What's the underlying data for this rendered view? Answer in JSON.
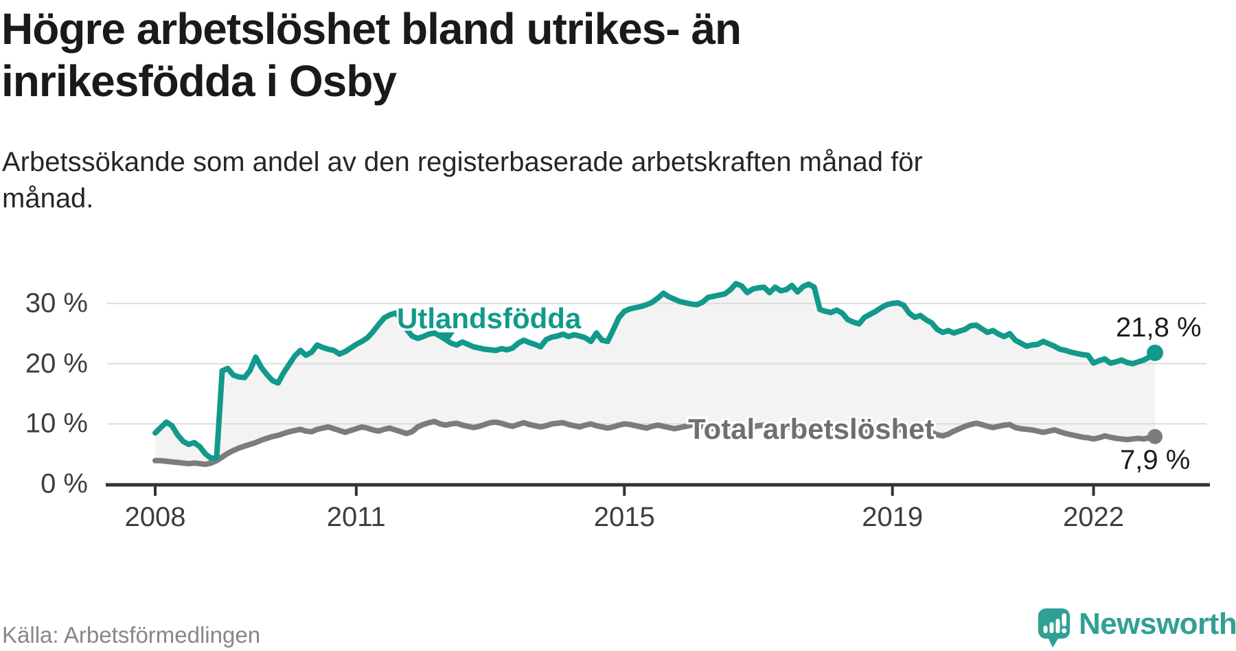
{
  "header": {
    "title_line1": "Högre arbetslöshet bland utrikes- än",
    "title_line2": "inrikesfödda i Osby",
    "subtitle_line1": "Arbetssökande som andel av den registerbaserade arbetskraften månad för",
    "subtitle_line2": "månad."
  },
  "chart_data": {
    "type": "line",
    "title": "Högre arbetslöshet bland utrikes- än inrikesfödda i Osby",
    "subtitle": "Arbetssökande som andel av den registerbaserade arbetskraften månad för månad.",
    "x_start": "2008-01",
    "x_end": "2022-12",
    "frequency": "monthly",
    "xlabel": "",
    "ylabel": "",
    "ylim": [
      0,
      33.5
    ],
    "grid": "horizontal",
    "y_gridlines": [
      10,
      20,
      30
    ],
    "y_tick_labels": [
      "0 %",
      "10 %",
      "20 %",
      "30 %"
    ],
    "x_tick_years": [
      2008,
      2011,
      2015,
      2019,
      2022
    ],
    "x_tick_labels": [
      "2008",
      "2011",
      "2015",
      "2019",
      "2022"
    ],
    "area_fill_between_series": true,
    "area_fill_color": "#f3f3f3",
    "gridline_color": "#dcdcdc",
    "axis_color": "#333333",
    "series": [
      {
        "name": "Utlandsfödda",
        "color": "#12998b",
        "end_label": "21,8 %",
        "end_value": 21.8,
        "values": [
          8.5,
          9.4,
          10.3,
          9.7,
          8.2,
          7.1,
          6.6,
          6.9,
          6.2,
          5.0,
          4.3,
          4.4,
          18.8,
          19.2,
          18.1,
          17.8,
          17.7,
          18.9,
          21.1,
          19.4,
          18.2,
          17.2,
          16.8,
          18.5,
          19.9,
          21.3,
          22.2,
          21.4,
          21.9,
          23.1,
          22.7,
          22.4,
          22.2,
          21.6,
          22.0,
          22.6,
          23.2,
          23.7,
          24.3,
          25.3,
          26.5,
          27.6,
          28.1,
          28.4,
          27.5,
          25.7,
          24.6,
          24.2,
          24.5,
          24.9,
          25.1,
          24.6,
          24.0,
          23.4,
          23.1,
          23.6,
          23.2,
          22.8,
          22.6,
          22.4,
          22.3,
          22.2,
          22.5,
          22.3,
          22.6,
          23.4,
          23.9,
          23.5,
          23.2,
          22.8,
          24.0,
          24.4,
          24.6,
          24.9,
          24.5,
          24.8,
          24.6,
          24.3,
          23.7,
          25.1,
          23.9,
          23.7,
          25.6,
          27.6,
          28.7,
          29.1,
          29.3,
          29.5,
          29.8,
          30.2,
          30.9,
          31.7,
          31.1,
          30.7,
          30.3,
          30.1,
          29.9,
          29.8,
          30.2,
          31.0,
          31.2,
          31.4,
          31.6,
          32.3,
          33.3,
          32.9,
          31.8,
          32.4,
          32.6,
          32.7,
          31.8,
          32.7,
          32.1,
          32.3,
          33.0,
          31.9,
          32.8,
          33.2,
          32.7,
          29.0,
          28.7,
          28.5,
          28.9,
          28.4,
          27.3,
          26.9,
          26.6,
          27.7,
          28.2,
          28.7,
          29.3,
          29.8,
          30.0,
          30.1,
          29.7,
          28.4,
          27.7,
          28.0,
          27.3,
          26.8,
          25.7,
          25.2,
          25.5,
          25.1,
          25.4,
          25.7,
          26.3,
          26.4,
          25.8,
          25.2,
          25.5,
          24.9,
          24.5,
          25.0,
          23.9,
          23.4,
          22.9,
          23.1,
          23.2,
          23.7,
          23.3,
          22.9,
          22.4,
          22.2,
          21.9,
          21.7,
          21.5,
          21.4,
          20.1,
          20.5,
          20.8,
          20.1,
          20.3,
          20.6,
          20.2,
          20.0,
          20.3,
          20.6,
          21.1,
          21.8
        ]
      },
      {
        "name": "Total arbetslöshet",
        "color": "#7c7c7c",
        "end_label": "7,9 %",
        "end_value": 7.9,
        "values": [
          3.9,
          3.9,
          3.8,
          3.7,
          3.6,
          3.5,
          3.4,
          3.5,
          3.4,
          3.3,
          3.5,
          3.9,
          4.5,
          5.1,
          5.6,
          6.0,
          6.3,
          6.6,
          6.9,
          7.3,
          7.6,
          7.9,
          8.1,
          8.4,
          8.7,
          8.9,
          9.1,
          8.8,
          8.7,
          9.1,
          9.3,
          9.5,
          9.2,
          8.9,
          8.6,
          8.9,
          9.2,
          9.5,
          9.3,
          9.0,
          8.8,
          9.1,
          9.3,
          9.0,
          8.7,
          8.4,
          8.7,
          9.5,
          9.9,
          10.2,
          10.4,
          10.0,
          9.8,
          10.0,
          10.1,
          9.8,
          9.6,
          9.4,
          9.6,
          9.9,
          10.2,
          10.3,
          10.1,
          9.8,
          9.6,
          9.9,
          10.2,
          9.9,
          9.7,
          9.5,
          9.7,
          10.0,
          10.1,
          10.2,
          9.9,
          9.7,
          9.5,
          9.8,
          10.0,
          9.7,
          9.5,
          9.3,
          9.5,
          9.8,
          10.0,
          9.9,
          9.7,
          9.5,
          9.3,
          9.6,
          9.8,
          9.6,
          9.4,
          9.2,
          9.4,
          9.6,
          9.8,
          9.9,
          9.6,
          9.4,
          9.2,
          9.5,
          9.7,
          9.5,
          9.3,
          9.1,
          9.3,
          9.5,
          9.7,
          9.8,
          9.5,
          9.3,
          9.1,
          9.4,
          9.6,
          9.4,
          9.2,
          9.0,
          9.1,
          9.3,
          9.4,
          9.5,
          9.2,
          9.0,
          8.8,
          9.0,
          9.2,
          8.9,
          8.7,
          8.5,
          8.6,
          8.8,
          9.0,
          9.1,
          8.9,
          8.7,
          8.5,
          8.7,
          8.9,
          8.6,
          8.2,
          8.0,
          8.3,
          8.8,
          9.2,
          9.6,
          9.9,
          10.1,
          9.9,
          9.6,
          9.4,
          9.6,
          9.8,
          9.9,
          9.4,
          9.2,
          9.1,
          9.0,
          8.8,
          8.6,
          8.8,
          9.0,
          8.7,
          8.4,
          8.2,
          8.0,
          7.8,
          7.7,
          7.5,
          7.7,
          8.0,
          7.8,
          7.6,
          7.5,
          7.4,
          7.5,
          7.6,
          7.5,
          7.7,
          7.9
        ]
      }
    ]
  },
  "annotations": {
    "utlandsfodda_label": "Utlandsfödda",
    "total_label": "Total arbetslöshet",
    "utlandsfodda_end_label": "21,8 %",
    "total_end_label": "7,9 %"
  },
  "footer": {
    "source": "Källa: Arbetsförmedlingen",
    "brand": "Newsworthy"
  },
  "colors": {
    "accent_teal": "#12998b",
    "logo_teal": "#2fa093",
    "line_gray": "#7c7c7c",
    "title_color": "#1a1a1a"
  }
}
